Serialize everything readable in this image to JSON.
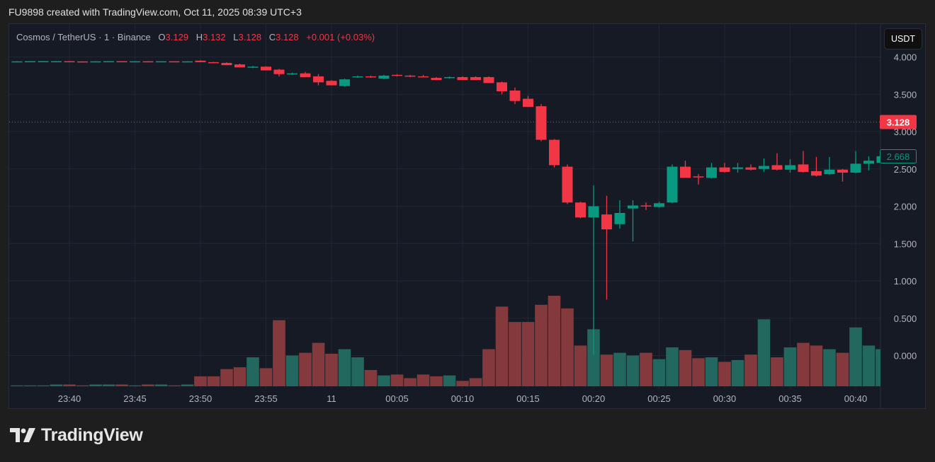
{
  "credit": "FU9898 created with TradingView.com, Oct 11, 2025 08:39 UTC+3",
  "legend": {
    "symbol": "Cosmos / TetherUS · 1 · Binance",
    "o_label": "O",
    "o": "3.129",
    "h_label": "H",
    "h": "3.132",
    "l_label": "L",
    "l": "3.128",
    "c_label": "C",
    "c": "3.128",
    "change": "+0.001 (+0.03%)"
  },
  "currency_button": "USDT",
  "brand": "TradingView",
  "colors": {
    "up": "#089981",
    "down": "#f23645",
    "vol_up": "#22685f",
    "vol_down": "#843a3d",
    "bg": "#161a25",
    "grid": "#222633"
  },
  "chart_data": {
    "type": "candlestick",
    "price_axis_ticks": [
      "4.000",
      "3.500",
      "3.000",
      "2.500",
      "2.000",
      "1.500",
      "1.000",
      "0.500",
      "0.000"
    ],
    "price_axis_values": [
      4,
      3.5,
      3,
      2.5,
      2,
      1.5,
      1,
      0.5,
      0
    ],
    "time_axis_ticks": [
      "23:40",
      "23:45",
      "23:50",
      "23:55",
      "11",
      "00:05",
      "00:10",
      "00:15",
      "00:20",
      "00:25",
      "00:30",
      "00:35",
      "00:40"
    ],
    "price_line": {
      "label": "3.128",
      "value": 3.128
    },
    "last_price": {
      "label": "2.668",
      "value": 2.668
    },
    "volume_unit": "percent of max visible bar",
    "candles": [
      [
        "23:36",
        3.938,
        3.942,
        3.936,
        3.941,
        1
      ],
      [
        "23:37",
        3.941,
        3.944,
        3.939,
        3.943,
        1
      ],
      [
        "23:38",
        3.943,
        3.945,
        3.94,
        3.944,
        1
      ],
      [
        "23:39",
        3.94,
        3.945,
        3.938,
        3.943,
        2
      ],
      [
        "23:40",
        3.943,
        3.945,
        3.938,
        3.94,
        2
      ],
      [
        "23:41",
        3.94,
        3.942,
        3.936,
        3.938,
        1
      ],
      [
        "23:42",
        3.938,
        3.943,
        3.936,
        3.941,
        2
      ],
      [
        "23:43",
        3.941,
        3.944,
        3.939,
        3.943,
        2
      ],
      [
        "23:44",
        3.943,
        3.944,
        3.938,
        3.94,
        2
      ],
      [
        "23:45",
        3.94,
        3.944,
        3.939,
        3.942,
        1
      ],
      [
        "23:46",
        3.942,
        3.944,
        3.937,
        3.939,
        2
      ],
      [
        "23:47",
        3.939,
        3.943,
        3.937,
        3.942,
        2
      ],
      [
        "23:48",
        3.942,
        3.943,
        3.936,
        3.938,
        1
      ],
      [
        "23:49",
        3.938,
        3.943,
        3.937,
        3.941,
        2
      ],
      [
        "23:50",
        3.95,
        3.955,
        3.93,
        3.93,
        11
      ],
      [
        "23:51",
        3.93,
        3.935,
        3.92,
        3.925,
        11
      ],
      [
        "23:52",
        3.92,
        3.93,
        3.89,
        3.89,
        19
      ],
      [
        "23:53",
        3.9,
        3.91,
        3.86,
        3.86,
        21
      ],
      [
        "23:54",
        3.86,
        3.88,
        3.85,
        3.87,
        32
      ],
      [
        "23:55",
        3.87,
        3.875,
        3.82,
        3.82,
        20
      ],
      [
        "23:56",
        3.83,
        3.84,
        3.74,
        3.77,
        73
      ],
      [
        "23:57",
        3.77,
        3.79,
        3.76,
        3.78,
        34
      ],
      [
        "23:58",
        3.78,
        3.8,
        3.73,
        3.73,
        37
      ],
      [
        "23:59",
        3.74,
        3.77,
        3.62,
        3.66,
        48
      ],
      [
        "00:00",
        3.68,
        3.69,
        3.62,
        3.62,
        36
      ],
      [
        "00:01",
        3.61,
        3.71,
        3.6,
        3.7,
        41
      ],
      [
        "00:02",
        3.73,
        3.75,
        3.72,
        3.74,
        32
      ],
      [
        "00:03",
        3.74,
        3.75,
        3.72,
        3.73,
        18
      ],
      [
        "00:04",
        3.71,
        3.76,
        3.7,
        3.75,
        12
      ],
      [
        "00:05",
        3.76,
        3.77,
        3.74,
        3.75,
        13
      ],
      [
        "00:06",
        3.75,
        3.76,
        3.73,
        3.74,
        9
      ],
      [
        "00:07",
        3.74,
        3.76,
        3.73,
        3.73,
        13
      ],
      [
        "00:08",
        3.72,
        3.73,
        3.69,
        3.69,
        11
      ],
      [
        "00:09",
        3.72,
        3.74,
        3.71,
        3.73,
        12
      ],
      [
        "00:10",
        3.73,
        3.74,
        3.69,
        3.69,
        6
      ],
      [
        "00:11",
        3.73,
        3.74,
        3.69,
        3.69,
        9
      ],
      [
        "00:12",
        3.73,
        3.74,
        3.65,
        3.65,
        41
      ],
      [
        "00:13",
        3.66,
        3.67,
        3.5,
        3.54,
        88
      ],
      [
        "00:14",
        3.55,
        3.59,
        3.37,
        3.41,
        71
      ],
      [
        "00:15",
        3.44,
        3.48,
        3.33,
        3.33,
        71
      ],
      [
        "00:16",
        3.34,
        3.37,
        2.87,
        2.89,
        90
      ],
      [
        "00:17",
        2.89,
        2.9,
        2.52,
        2.55,
        100
      ],
      [
        "00:18",
        2.53,
        2.56,
        2.03,
        2.05,
        86
      ],
      [
        "00:19",
        2.05,
        2.06,
        1.84,
        1.85,
        45
      ],
      [
        "00:20",
        1.85,
        2.28,
        0.01,
        2.0,
        63
      ],
      [
        "00:21",
        1.89,
        2.14,
        0.75,
        1.69,
        35
      ],
      [
        "00:22",
        1.76,
        2.08,
        1.7,
        1.91,
        37
      ],
      [
        "00:23",
        1.97,
        2.08,
        1.53,
        2.01,
        34
      ],
      [
        "00:24",
        2.01,
        2.05,
        1.95,
        2.0,
        37
      ],
      [
        "00:25",
        1.99,
        2.06,
        1.98,
        2.04,
        30
      ],
      [
        "00:26",
        2.05,
        2.56,
        2.04,
        2.53,
        43
      ],
      [
        "00:27",
        2.53,
        2.61,
        2.38,
        2.38,
        40
      ],
      [
        "00:28",
        2.4,
        2.43,
        2.29,
        2.39,
        31
      ],
      [
        "00:29",
        2.38,
        2.58,
        2.37,
        2.52,
        32
      ],
      [
        "00:30",
        2.52,
        2.58,
        2.45,
        2.46,
        27
      ],
      [
        "00:31",
        2.5,
        2.58,
        2.45,
        2.52,
        29
      ],
      [
        "00:32",
        2.52,
        2.56,
        2.48,
        2.49,
        35
      ],
      [
        "00:33",
        2.5,
        2.64,
        2.46,
        2.54,
        74
      ],
      [
        "00:34",
        2.55,
        2.71,
        2.48,
        2.49,
        32
      ],
      [
        "00:35",
        2.49,
        2.63,
        2.45,
        2.55,
        43
      ],
      [
        "00:36",
        2.56,
        2.74,
        2.45,
        2.46,
        48
      ],
      [
        "00:37",
        2.47,
        2.66,
        2.4,
        2.41,
        45
      ],
      [
        "00:38",
        2.43,
        2.66,
        2.42,
        2.49,
        41
      ],
      [
        "00:39",
        2.49,
        2.5,
        2.33,
        2.45,
        37
      ],
      [
        "00:40",
        2.45,
        2.74,
        2.44,
        2.57,
        65
      ],
      [
        "00:41",
        2.57,
        2.67,
        2.48,
        2.61,
        45
      ],
      [
        "00:42",
        2.58,
        2.7,
        2.57,
        2.67,
        41
      ]
    ]
  }
}
